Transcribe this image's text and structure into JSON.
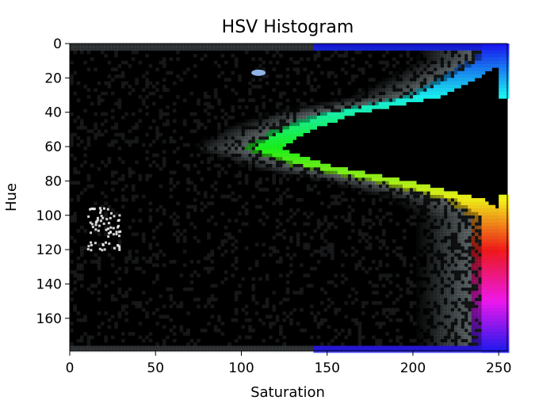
{
  "chart_data": {
    "type": "heatmap",
    "title": "HSV Histogram",
    "xlabel": "Saturation",
    "ylabel": "Hue",
    "xlim": [
      0,
      255
    ],
    "ylim": [
      179,
      0
    ],
    "x_ticks": [
      0,
      50,
      100,
      150,
      200,
      250
    ],
    "y_ticks": [
      0,
      20,
      40,
      60,
      80,
      100,
      120,
      140,
      160
    ],
    "background_color": "#000000",
    "description_colors": {
      "hue_0_to_15": "#0033ff",
      "hue_15_to_30": "#00aaff",
      "hue_30_to_60": "#33ff99",
      "hue_60_to_90": "#aaff33",
      "hue_90_to_110": "#ffcc00",
      "hue_110_to_125": "#ff2200",
      "hue_175_to_179": "#0033ff"
    },
    "features": [
      {
        "label": "curved band",
        "peak_sat_at_hue": [
          [
            8,
            255
          ],
          [
            20,
            235
          ],
          [
            30,
            215
          ],
          [
            40,
            165
          ],
          [
            50,
            138
          ],
          [
            60,
            122
          ],
          [
            70,
            150
          ],
          [
            80,
            200
          ],
          [
            90,
            240
          ],
          [
            100,
            255
          ],
          [
            120,
            255
          ]
        ]
      },
      {
        "label": "dense cluster",
        "saturation_range": [
          10,
          30
        ],
        "hue_range": [
          95,
          120
        ]
      },
      {
        "label": "small blob",
        "saturation": 110,
        "hue": 17
      }
    ]
  }
}
